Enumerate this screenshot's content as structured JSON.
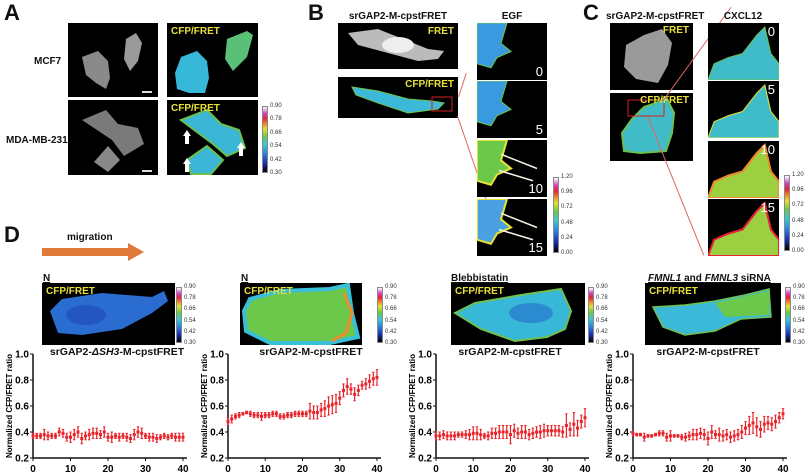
{
  "panels": {
    "A": {
      "label": "A",
      "rows": [
        "MCF7",
        "MDA-MB-231"
      ],
      "overlay": "CFP/FRET",
      "colorbar": [
        "0.90",
        "0.78",
        "0.66",
        "0.54",
        "0.42",
        "0.30"
      ]
    },
    "B": {
      "label": "B",
      "title": "srGAP2-M-cpstFRET",
      "fret": "FRET",
      "overlay": "CFP/FRET",
      "stim": "EGF",
      "times": [
        "0",
        "5",
        "10",
        "15"
      ],
      "colorbar": [
        "1.20",
        "0.96",
        "0.72",
        "0.48",
        "0.24",
        "0.00"
      ]
    },
    "C": {
      "label": "C",
      "title": "srGAP2-M-cpstFRET",
      "fret": "FRET",
      "overlay": "CFP/FRET",
      "stim": "CXCL12",
      "times": [
        "0",
        "5",
        "10",
        "15"
      ],
      "colorbar": [
        "1.20",
        "0.96",
        "0.72",
        "0.48",
        "0.24",
        "0.00"
      ]
    },
    "D": {
      "label": "D",
      "migration": "migration",
      "overlay": "CFP/FRET",
      "colorbar": [
        "0.90",
        "0.78",
        "0.66",
        "0.54",
        "0.42",
        "0.30"
      ],
      "conditions": [
        "N",
        "N",
        "Blebbistatin",
        "FMNL1 and FMNL3 siRNA"
      ],
      "condition4_parts": [
        "FMNL1",
        " and ",
        "FMNL3",
        " siRNA"
      ],
      "construct1_parts": [
        "srGAP2-",
        "ΔSH3",
        "-M-cpstFRET"
      ]
    }
  },
  "chart_data": [
    {
      "type": "scatter",
      "title": "srGAP2-ΔSH3-M-cpstFRET",
      "xlabel": "",
      "ylabel": "Normalized CFP/FRET ratio",
      "xlim": [
        0,
        40
      ],
      "ylim": [
        0.2,
        1.0
      ],
      "xticks": [
        "0",
        "10",
        "20",
        "30",
        "40"
      ],
      "yticks": [
        "0.2",
        "0.4",
        "0.6",
        "0.8",
        "1.0"
      ],
      "values": [
        0.37,
        0.37,
        0.37,
        0.38,
        0.37,
        0.37,
        0.37,
        0.4,
        0.39,
        0.36,
        0.36,
        0.38,
        0.4,
        0.35,
        0.37,
        0.38,
        0.39,
        0.39,
        0.38,
        0.4,
        0.36,
        0.36,
        0.37,
        0.36,
        0.37,
        0.36,
        0.35,
        0.38,
        0.4,
        0.39,
        0.37,
        0.36,
        0.36,
        0.35,
        0.36,
        0.37,
        0.36,
        0.37,
        0.36,
        0.36,
        0.36
      ],
      "error": [
        0.02,
        0.02,
        0.02,
        0.04,
        0.03,
        0.02,
        0.02,
        0.03,
        0.03,
        0.03,
        0.04,
        0.04,
        0.04,
        0.04,
        0.03,
        0.04,
        0.04,
        0.04,
        0.03,
        0.04,
        0.03,
        0.04,
        0.02,
        0.03,
        0.02,
        0.03,
        0.03,
        0.04,
        0.04,
        0.04,
        0.02,
        0.03,
        0.03,
        0.03,
        0.02,
        0.02,
        0.02,
        0.02,
        0.03,
        0.03,
        0.03
      ]
    },
    {
      "type": "scatter",
      "title": "srGAP2-M-cpstFRET",
      "xlabel": "",
      "ylabel": "Normalized CFP/FRET ratio",
      "xlim": [
        0,
        40
      ],
      "ylim": [
        0.2,
        1.0
      ],
      "xticks": [
        "0",
        "10",
        "20",
        "30",
        "40"
      ],
      "yticks": [
        "0.2",
        "0.4",
        "0.6",
        "0.8",
        "1.0"
      ],
      "values": [
        0.48,
        0.5,
        0.52,
        0.53,
        0.54,
        0.55,
        0.54,
        0.53,
        0.53,
        0.52,
        0.53,
        0.53,
        0.54,
        0.54,
        0.52,
        0.52,
        0.53,
        0.53,
        0.54,
        0.54,
        0.54,
        0.54,
        0.56,
        0.55,
        0.55,
        0.57,
        0.58,
        0.6,
        0.61,
        0.62,
        0.66,
        0.72,
        0.75,
        0.73,
        0.69,
        0.72,
        0.76,
        0.77,
        0.79,
        0.81,
        0.82
      ],
      "error": [
        0.03,
        0.03,
        0.02,
        0.02,
        0.01,
        0.01,
        0.02,
        0.02,
        0.02,
        0.03,
        0.02,
        0.02,
        0.02,
        0.02,
        0.02,
        0.02,
        0.02,
        0.02,
        0.02,
        0.02,
        0.02,
        0.02,
        0.06,
        0.05,
        0.05,
        0.05,
        0.06,
        0.07,
        0.07,
        0.07,
        0.05,
        0.05,
        0.06,
        0.04,
        0.05,
        0.04,
        0.03,
        0.04,
        0.05,
        0.05,
        0.06
      ]
    },
    {
      "type": "scatter",
      "title": "srGAP2-M-cpstFRET",
      "xlabel": "",
      "ylabel": "Normalized CFP/FRET ratio",
      "xlim": [
        0,
        40
      ],
      "ylim": [
        0.2,
        1.0
      ],
      "xticks": [
        "0",
        "10",
        "20",
        "30",
        "40"
      ],
      "yticks": [
        "0.2",
        "0.4",
        "0.6",
        "0.8",
        "1.0"
      ],
      "values": [
        0.37,
        0.37,
        0.38,
        0.37,
        0.37,
        0.37,
        0.38,
        0.38,
        0.38,
        0.38,
        0.39,
        0.39,
        0.38,
        0.37,
        0.37,
        0.39,
        0.39,
        0.4,
        0.4,
        0.4,
        0.38,
        0.41,
        0.39,
        0.4,
        0.4,
        0.38,
        0.39,
        0.4,
        0.4,
        0.41,
        0.41,
        0.41,
        0.41,
        0.41,
        0.4,
        0.45,
        0.42,
        0.46,
        0.43,
        0.48,
        0.51
      ],
      "error": [
        0.03,
        0.03,
        0.03,
        0.03,
        0.03,
        0.03,
        0.02,
        0.02,
        0.03,
        0.04,
        0.05,
        0.05,
        0.04,
        0.02,
        0.03,
        0.04,
        0.04,
        0.05,
        0.05,
        0.05,
        0.07,
        0.05,
        0.04,
        0.05,
        0.05,
        0.04,
        0.04,
        0.04,
        0.05,
        0.05,
        0.04,
        0.04,
        0.04,
        0.04,
        0.04,
        0.09,
        0.05,
        0.09,
        0.06,
        0.05,
        0.07
      ]
    },
    {
      "type": "scatter",
      "title": "srGAP2-M-cpstFRET",
      "xlabel": "",
      "ylabel": "Normalized CFP/FRET ratio",
      "xlim": [
        0,
        40
      ],
      "ylim": [
        0.2,
        1.0
      ],
      "xticks": [
        "0",
        "10",
        "20",
        "30",
        "40"
      ],
      "yticks": [
        "0.2",
        "0.4",
        "0.6",
        "0.8",
        "1.0"
      ],
      "values": [
        0.39,
        0.38,
        0.38,
        0.36,
        0.37,
        0.37,
        0.38,
        0.39,
        0.39,
        0.36,
        0.37,
        0.37,
        0.37,
        0.36,
        0.36,
        0.37,
        0.38,
        0.38,
        0.39,
        0.38,
        0.35,
        0.4,
        0.38,
        0.38,
        0.37,
        0.38,
        0.36,
        0.37,
        0.38,
        0.4,
        0.43,
        0.45,
        0.47,
        0.44,
        0.42,
        0.46,
        0.47,
        0.46,
        0.48,
        0.51,
        0.54
      ],
      "error": [
        0.02,
        0.01,
        0.01,
        0.03,
        0.01,
        0.01,
        0.01,
        0.02,
        0.02,
        0.03,
        0.04,
        0.01,
        0.01,
        0.02,
        0.03,
        0.03,
        0.04,
        0.04,
        0.04,
        0.04,
        0.05,
        0.05,
        0.03,
        0.05,
        0.04,
        0.04,
        0.04,
        0.04,
        0.04,
        0.05,
        0.05,
        0.07,
        0.08,
        0.07,
        0.06,
        0.06,
        0.05,
        0.05,
        0.05,
        0.04,
        0.04
      ]
    }
  ],
  "colors": {
    "marker": "#e8232a",
    "arrow": "#e07a3a",
    "overlay_text": "#e8e03a"
  }
}
